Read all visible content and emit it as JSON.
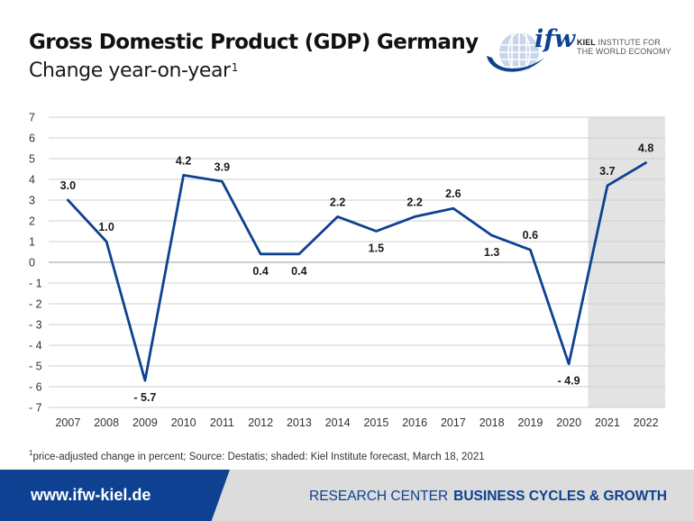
{
  "header": {
    "title": "Gross Domestic Product (GDP) Germany",
    "subtitle": "Change year-on-year",
    "subtitle_note": "1"
  },
  "logo": {
    "mark": "ifw",
    "name_bold": "KIEL",
    "name_line1": "INSTITUTE FOR",
    "name_line2": "THE WORLD ECONOMY"
  },
  "chart_data": {
    "type": "line",
    "x": [
      "2007",
      "2008",
      "2009",
      "2010",
      "2011",
      "2012",
      "2013",
      "2014",
      "2015",
      "2016",
      "2017",
      "2018",
      "2019",
      "2020",
      "2021",
      "2022"
    ],
    "series": [
      {
        "values": [
          3.0,
          1.0,
          -5.7,
          4.2,
          3.9,
          0.4,
          0.4,
          2.2,
          1.5,
          2.2,
          2.6,
          1.3,
          0.6,
          -4.9,
          3.7,
          4.8
        ],
        "labels": [
          "3.0",
          "1.0",
          "- 5.7",
          "4.2",
          "3.9",
          "0.4",
          "0.4",
          "2.2",
          "1.5",
          "2.2",
          "2.6",
          "1.3",
          "0.6",
          "- 4.9",
          "3.7",
          "4.8"
        ],
        "color": "#0e4191"
      }
    ],
    "yticks": [
      "7",
      "6",
      "5",
      "4",
      "3",
      "2",
      "1",
      "0",
      "- 1",
      "- 2",
      "- 3",
      "- 4",
      "- 5",
      "- 6",
      "- 7"
    ],
    "ylim": [
      -7,
      7
    ],
    "grid": true,
    "shaded_x": [
      "2021",
      "2022"
    ],
    "shade_color": "#e3e3e3"
  },
  "footnote": {
    "mark": "1",
    "text": "price-adjusted change in percent; Source: Destatis; shaded: Kiel Institute forecast, March 18, 2021"
  },
  "footer": {
    "url": "www.ifw-kiel.de",
    "rc_prefix": "RESEARCH CENTER",
    "rc_name": "BUSINESS CYCLES & GROWTH"
  },
  "colors": {
    "brand_blue": "#0e4191",
    "grid": "#cfcfcf",
    "footer_gray": "#dcdcdc"
  }
}
